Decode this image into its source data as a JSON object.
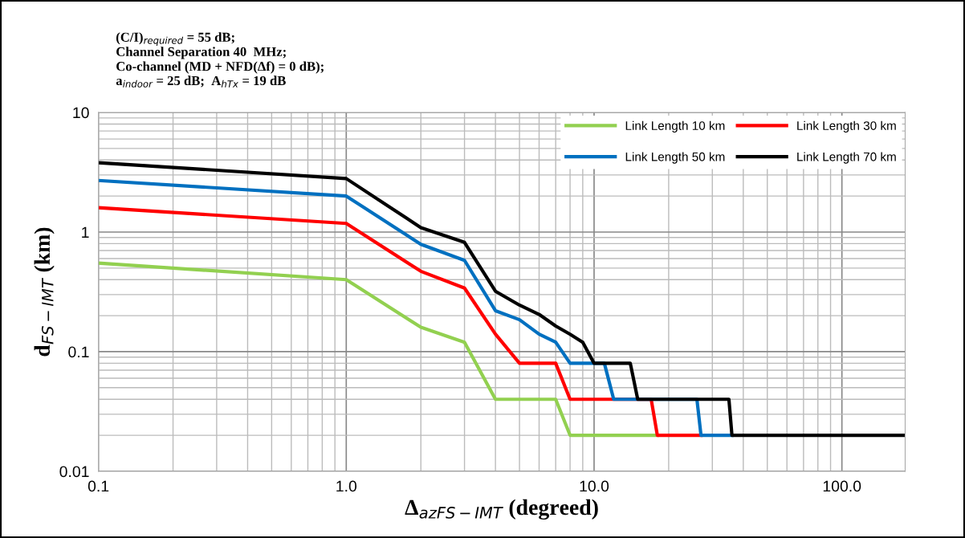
{
  "chart_data": {
    "type": "line",
    "xlabel": "Δ$_{azFS−IMT}$ (degreed)",
    "ylabel": "d$_{FS−IMT}$ (km)",
    "annotations": [
      "(C/I)$_{required}$ = 55 dB;",
      "Channel Separation 40  MHz;",
      "Co-channel (MD + NFD(Δf) = 0 dB);",
      "a$_{indoor}$ = 25 dB;  A$_{hTx}$ = 19 dB"
    ],
    "log": "xy",
    "xlim": [
      0.1,
      180
    ],
    "ylim": [
      0.01,
      10
    ],
    "xticks": [
      0.1,
      {
        "value": 1,
        "label": "1.0"
      },
      {
        "value": 10,
        "label": "10.0"
      },
      {
        "value": 100,
        "label": "100.0"
      }
    ],
    "yticks": [
      0.01,
      0.1,
      1,
      10
    ],
    "grid": true,
    "legend": "top right",
    "marker": "none",
    "line_style": "solid",
    "series": [
      {
        "name": "Link Length 10 km",
        "color": "#92d050",
        "x": [
          0.1,
          1,
          2,
          3,
          4,
          7,
          8,
          18
        ],
        "values": [
          0.55,
          0.4,
          0.16,
          0.12,
          0.04,
          0.04,
          0.02,
          0.02
        ]
      },
      {
        "name": "Link Length 30 km",
        "color": "#ff0000",
        "x": [
          0.1,
          1,
          2,
          3,
          4,
          5,
          7,
          8,
          17,
          18,
          27
        ],
        "values": [
          1.6,
          1.18,
          0.47,
          0.34,
          0.14,
          0.08,
          0.08,
          0.04,
          0.04,
          0.02,
          0.02
        ]
      },
      {
        "name": "Link Length 50 km",
        "color": "#0070c0",
        "x": [
          0.1,
          1,
          2,
          3,
          4,
          5,
          6,
          7,
          8,
          11,
          12,
          26,
          27,
          36
        ],
        "values": [
          2.7,
          2.0,
          0.79,
          0.58,
          0.22,
          0.185,
          0.14,
          0.12,
          0.08,
          0.08,
          0.04,
          0.04,
          0.02,
          0.02
        ]
      },
      {
        "name": "Link Length 70 km",
        "color": "#000000",
        "x": [
          0.1,
          1,
          2,
          3,
          4,
          5,
          6,
          7,
          8,
          9,
          10,
          14,
          15,
          35,
          36,
          180
        ],
        "values": [
          3.8,
          2.8,
          1.09,
          0.82,
          0.32,
          0.245,
          0.205,
          0.164,
          0.14,
          0.12,
          0.08,
          0.08,
          0.04,
          0.04,
          0.02,
          0.02
        ]
      }
    ]
  }
}
